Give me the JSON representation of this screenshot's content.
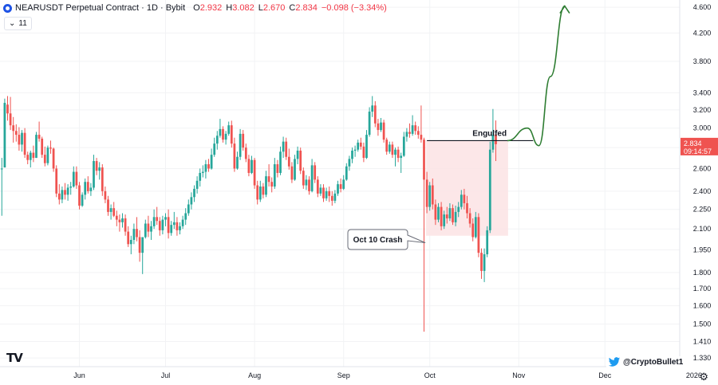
{
  "header": {
    "title": "NEARUSDT Perpetual Contract · 1D · Bybit",
    "ohlc": [
      {
        "k": "O",
        "v": "2.932"
      },
      {
        "k": "H",
        "v": "3.082"
      },
      {
        "k": "L",
        "v": "2.670"
      },
      {
        "k": "C",
        "v": "2.834"
      },
      {
        "k": "",
        "v": "−0.098 (−3.34%)"
      }
    ],
    "indicator_count": "11"
  },
  "price_label": {
    "price": "2.834",
    "countdown": "09:14:57"
  },
  "annotations": {
    "engulfed": "Engulfed",
    "crash": "Oct 10 Crash"
  },
  "handle": "@CryptoBullet1",
  "logo": "TV",
  "colors": {
    "up": "#26a69a",
    "down": "#ef5350",
    "arrow": "#2e7d32",
    "zone": "#fbe3e4",
    "label_bg": "#ef5350"
  },
  "chart_data": {
    "type": "candlestick",
    "title": "NEARUSDT Perpetual Contract · 1D · Bybit",
    "y_scale": "log",
    "ylim": [
      1.29,
      4.72
    ],
    "y_ticks": [
      4.6,
      4.2,
      3.8,
      3.4,
      3.2,
      3.0,
      2.8,
      2.6,
      2.4,
      2.25,
      2.1,
      1.95,
      1.8,
      1.7,
      1.6,
      1.5,
      1.41,
      1.33
    ],
    "y_tick_labels": [
      "4.600",
      "4.200",
      "3.800",
      "3.400",
      "3.200",
      "3.000",
      "2.800",
      "2.600",
      "2.400",
      "2.250",
      "2.100",
      "1.950",
      "1.800",
      "1.700",
      "1.600",
      "1.500",
      "1.410",
      "1.330"
    ],
    "x_ticks": [
      {
        "label": "Jun",
        "index": 27
      },
      {
        "label": "Jul",
        "index": 57
      },
      {
        "label": "Aug",
        "index": 88
      },
      {
        "label": "Sep",
        "index": 119
      },
      {
        "label": "Oct",
        "index": 149
      },
      {
        "label": "Nov",
        "index": 180
      },
      {
        "label": "Dec",
        "index": 210
      },
      {
        "label": "2026",
        "index": 241
      }
    ],
    "candles": {
      "fields": [
        "open",
        "high",
        "low",
        "close"
      ],
      "values": [
        [
          2.6,
          2.7,
          2.2,
          2.6
        ],
        [
          2.61,
          3.33,
          2.61,
          3.28
        ],
        [
          3.26,
          3.36,
          3.08,
          3.16
        ],
        [
          3.16,
          3.35,
          2.98,
          3.03
        ],
        [
          3.03,
          3.12,
          2.85,
          2.97
        ],
        [
          2.97,
          3.04,
          2.86,
          2.93
        ],
        [
          2.93,
          3.01,
          2.77,
          2.83
        ],
        [
          2.83,
          2.98,
          2.76,
          2.95
        ],
        [
          2.95,
          3.0,
          2.7,
          2.73
        ],
        [
          2.73,
          2.76,
          2.64,
          2.68
        ],
        [
          2.68,
          2.77,
          2.61,
          2.75
        ],
        [
          2.75,
          2.82,
          2.66,
          2.7
        ],
        [
          2.7,
          2.96,
          2.7,
          2.93
        ],
        [
          2.93,
          3.07,
          2.86,
          2.89
        ],
        [
          2.89,
          2.91,
          2.7,
          2.73
        ],
        [
          2.73,
          2.81,
          2.62,
          2.65
        ],
        [
          2.65,
          2.82,
          2.63,
          2.8
        ],
        [
          2.8,
          2.87,
          2.74,
          2.79
        ],
        [
          2.79,
          2.8,
          2.57,
          2.6
        ],
        [
          2.6,
          2.63,
          2.35,
          2.38
        ],
        [
          2.38,
          2.46,
          2.29,
          2.33
        ],
        [
          2.33,
          2.44,
          2.3,
          2.41
        ],
        [
          2.41,
          2.47,
          2.33,
          2.37
        ],
        [
          2.37,
          2.46,
          2.32,
          2.43
        ],
        [
          2.43,
          2.48,
          2.37,
          2.44
        ],
        [
          2.44,
          2.62,
          2.43,
          2.57
        ],
        [
          2.57,
          2.62,
          2.42,
          2.45
        ],
        [
          2.45,
          2.48,
          2.25,
          2.28
        ],
        [
          2.28,
          2.39,
          2.27,
          2.37
        ],
        [
          2.37,
          2.51,
          2.33,
          2.48
        ],
        [
          2.48,
          2.53,
          2.38,
          2.4
        ],
        [
          2.4,
          2.47,
          2.36,
          2.43
        ],
        [
          2.43,
          2.73,
          2.41,
          2.67
        ],
        [
          2.67,
          2.7,
          2.54,
          2.58
        ],
        [
          2.58,
          2.66,
          2.5,
          2.61
        ],
        [
          2.61,
          2.64,
          2.36,
          2.4
        ],
        [
          2.4,
          2.44,
          2.3,
          2.33
        ],
        [
          2.33,
          2.36,
          2.2,
          2.23
        ],
        [
          2.23,
          2.29,
          2.17,
          2.26
        ],
        [
          2.26,
          2.31,
          2.19,
          2.2
        ],
        [
          2.2,
          2.24,
          2.12,
          2.17
        ],
        [
          2.17,
          2.21,
          2.08,
          2.15
        ],
        [
          2.15,
          2.22,
          2.11,
          2.18
        ],
        [
          2.18,
          2.21,
          2.05,
          2.08
        ],
        [
          2.08,
          2.12,
          1.97,
          1.99
        ],
        [
          1.99,
          2.05,
          1.92,
          2.02
        ],
        [
          2.02,
          2.14,
          1.99,
          2.1
        ],
        [
          2.1,
          2.19,
          2.01,
          2.04
        ],
        [
          2.04,
          2.09,
          1.87,
          1.93
        ],
        [
          1.93,
          1.97,
          1.79,
          2.04
        ],
        [
          2.04,
          2.17,
          2.03,
          2.14
        ],
        [
          2.14,
          2.2,
          2.04,
          2.08
        ],
        [
          2.08,
          2.16,
          2.02,
          2.12
        ],
        [
          2.12,
          2.25,
          2.1,
          2.19
        ],
        [
          2.19,
          2.27,
          2.13,
          2.16
        ],
        [
          2.16,
          2.19,
          2.05,
          2.09
        ],
        [
          2.09,
          2.2,
          2.06,
          2.17
        ],
        [
          2.17,
          2.22,
          2.12,
          2.19
        ],
        [
          2.19,
          2.25,
          2.03,
          2.07
        ],
        [
          2.07,
          2.16,
          2.05,
          2.13
        ],
        [
          2.13,
          2.23,
          2.1,
          2.15
        ],
        [
          2.15,
          2.19,
          2.05,
          2.09
        ],
        [
          2.09,
          2.15,
          2.06,
          2.12
        ],
        [
          2.12,
          2.2,
          2.1,
          2.17
        ],
        [
          2.17,
          2.26,
          2.13,
          2.22
        ],
        [
          2.22,
          2.33,
          2.2,
          2.29
        ],
        [
          2.29,
          2.39,
          2.25,
          2.35
        ],
        [
          2.35,
          2.45,
          2.31,
          2.42
        ],
        [
          2.42,
          2.53,
          2.38,
          2.49
        ],
        [
          2.49,
          2.6,
          2.44,
          2.56
        ],
        [
          2.56,
          2.63,
          2.52,
          2.57
        ],
        [
          2.57,
          2.68,
          2.51,
          2.64
        ],
        [
          2.64,
          2.69,
          2.57,
          2.6
        ],
        [
          2.6,
          2.79,
          2.59,
          2.73
        ],
        [
          2.73,
          2.9,
          2.71,
          2.84
        ],
        [
          2.84,
          2.97,
          2.78,
          2.92
        ],
        [
          2.92,
          3.1,
          2.9,
          2.99
        ],
        [
          2.99,
          3.02,
          2.85,
          2.88
        ],
        [
          2.88,
          2.97,
          2.83,
          2.94
        ],
        [
          2.94,
          3.07,
          2.92,
          3.03
        ],
        [
          3.03,
          3.08,
          2.8,
          2.84
        ],
        [
          2.84,
          2.9,
          2.57,
          2.6
        ],
        [
          2.6,
          2.76,
          2.59,
          2.71
        ],
        [
          2.71,
          2.99,
          2.68,
          2.94
        ],
        [
          2.94,
          2.98,
          2.77,
          2.8
        ],
        [
          2.8,
          2.84,
          2.66,
          2.69
        ],
        [
          2.69,
          2.73,
          2.53,
          2.56
        ],
        [
          2.56,
          2.72,
          2.55,
          2.68
        ],
        [
          2.68,
          2.7,
          2.42,
          2.45
        ],
        [
          2.45,
          2.49,
          2.29,
          2.33
        ],
        [
          2.33,
          2.49,
          2.31,
          2.44
        ],
        [
          2.44,
          2.47,
          2.34,
          2.37
        ],
        [
          2.37,
          2.58,
          2.35,
          2.53
        ],
        [
          2.53,
          2.64,
          2.44,
          2.48
        ],
        [
          2.48,
          2.52,
          2.39,
          2.44
        ],
        [
          2.44,
          2.7,
          2.42,
          2.64
        ],
        [
          2.64,
          2.68,
          2.52,
          2.56
        ],
        [
          2.56,
          2.81,
          2.54,
          2.76
        ],
        [
          2.76,
          2.91,
          2.7,
          2.86
        ],
        [
          2.86,
          2.9,
          2.68,
          2.71
        ],
        [
          2.71,
          2.79,
          2.59,
          2.62
        ],
        [
          2.62,
          2.66,
          2.47,
          2.5
        ],
        [
          2.5,
          2.73,
          2.49,
          2.69
        ],
        [
          2.69,
          2.81,
          2.64,
          2.77
        ],
        [
          2.77,
          2.8,
          2.55,
          2.58
        ],
        [
          2.58,
          2.61,
          2.42,
          2.45
        ],
        [
          2.45,
          2.54,
          2.41,
          2.5
        ],
        [
          2.5,
          2.53,
          2.37,
          2.4
        ],
        [
          2.4,
          2.69,
          2.39,
          2.63
        ],
        [
          2.63,
          2.66,
          2.47,
          2.5
        ],
        [
          2.5,
          2.53,
          2.35,
          2.38
        ],
        [
          2.38,
          2.46,
          2.36,
          2.43
        ],
        [
          2.43,
          2.46,
          2.31,
          2.34
        ],
        [
          2.34,
          2.43,
          2.32,
          2.4
        ],
        [
          2.4,
          2.44,
          2.31,
          2.36
        ],
        [
          2.36,
          2.4,
          2.28,
          2.32
        ],
        [
          2.32,
          2.41,
          2.3,
          2.38
        ],
        [
          2.38,
          2.49,
          2.36,
          2.46
        ],
        [
          2.46,
          2.51,
          2.39,
          2.42
        ],
        [
          2.42,
          2.54,
          2.41,
          2.5
        ],
        [
          2.5,
          2.65,
          2.49,
          2.62
        ],
        [
          2.62,
          2.72,
          2.58,
          2.69
        ],
        [
          2.69,
          2.8,
          2.65,
          2.77
        ],
        [
          2.77,
          2.82,
          2.71,
          2.78
        ],
        [
          2.78,
          2.88,
          2.76,
          2.85
        ],
        [
          2.85,
          2.9,
          2.78,
          2.81
        ],
        [
          2.81,
          2.85,
          2.66,
          2.7
        ],
        [
          2.7,
          2.98,
          2.69,
          2.93
        ],
        [
          2.93,
          3.23,
          2.91,
          3.18
        ],
        [
          3.18,
          3.36,
          3.12,
          3.25
        ],
        [
          3.25,
          3.3,
          3.01,
          3.05
        ],
        [
          3.05,
          3.1,
          2.92,
          2.98
        ],
        [
          2.98,
          3.11,
          2.96,
          3.06
        ],
        [
          3.06,
          3.09,
          2.85,
          2.88
        ],
        [
          2.88,
          2.9,
          2.73,
          2.76
        ],
        [
          2.76,
          2.86,
          2.74,
          2.83
        ],
        [
          2.83,
          2.86,
          2.7,
          2.73
        ],
        [
          2.73,
          2.8,
          2.62,
          2.78
        ],
        [
          2.78,
          2.81,
          2.66,
          2.7
        ],
        [
          2.7,
          2.75,
          2.56,
          2.72
        ],
        [
          2.72,
          2.96,
          2.71,
          2.91
        ],
        [
          2.91,
          3.0,
          2.86,
          2.96
        ],
        [
          2.96,
          3.05,
          2.9,
          2.94
        ],
        [
          2.94,
          3.14,
          2.92,
          3.03
        ],
        [
          3.03,
          3.07,
          2.93,
          2.97
        ],
        [
          2.97,
          3.02,
          2.89,
          2.93
        ],
        [
          2.93,
          3.25,
          2.85,
          2.88
        ],
        [
          2.88,
          2.9,
          1.46,
          2.5
        ],
        [
          2.5,
          2.57,
          2.22,
          2.27
        ],
        [
          2.27,
          2.48,
          2.24,
          2.45
        ],
        [
          2.45,
          2.51,
          2.25,
          2.29
        ],
        [
          2.29,
          2.33,
          2.13,
          2.17
        ],
        [
          2.17,
          2.3,
          2.15,
          2.27
        ],
        [
          2.27,
          2.31,
          2.09,
          2.12
        ],
        [
          2.12,
          2.24,
          2.1,
          2.21
        ],
        [
          2.21,
          2.27,
          2.14,
          2.18
        ],
        [
          2.18,
          2.3,
          2.16,
          2.26
        ],
        [
          2.26,
          2.29,
          2.13,
          2.15
        ],
        [
          2.15,
          2.28,
          2.12,
          2.23
        ],
        [
          2.23,
          2.31,
          2.19,
          2.27
        ],
        [
          2.27,
          2.41,
          2.25,
          2.37
        ],
        [
          2.37,
          2.42,
          2.25,
          2.3
        ],
        [
          2.3,
          2.36,
          2.18,
          2.22
        ],
        [
          2.22,
          2.26,
          2.11,
          2.14
        ],
        [
          2.14,
          2.18,
          2.01,
          2.04
        ],
        [
          2.04,
          2.23,
          2.03,
          2.19
        ],
        [
          2.19,
          2.22,
          1.9,
          1.93
        ],
        [
          1.93,
          1.96,
          1.76,
          1.81
        ],
        [
          1.81,
          1.96,
          1.74,
          1.92
        ],
        [
          1.92,
          2.12,
          1.9,
          2.09
        ],
        [
          2.09,
          2.86,
          2.07,
          2.78
        ],
        [
          2.78,
          3.21,
          2.75,
          2.93
        ],
        [
          2.932,
          3.082,
          2.67,
          2.834
        ]
      ]
    },
    "annotations": [
      {
        "text": "Engulfed",
        "type": "horizontal-line",
        "price": 2.87,
        "from_index": 148,
        "to_index": 185
      },
      {
        "text": "Oct 10 Crash",
        "type": "callout",
        "index": 148,
        "price": 2.0
      },
      {
        "type": "shaded-zone",
        "from_index": 148,
        "to_index": 176,
        "price_top": 2.87,
        "price_bottom": 2.05
      },
      {
        "type": "projection-arrow",
        "points": [
          [
            176,
            2.87
          ],
          [
            183,
            3.0
          ],
          [
            187,
            2.82
          ],
          [
            191,
            3.6
          ],
          [
            196,
            4.62
          ]
        ]
      }
    ],
    "last_price": 2.834
  }
}
